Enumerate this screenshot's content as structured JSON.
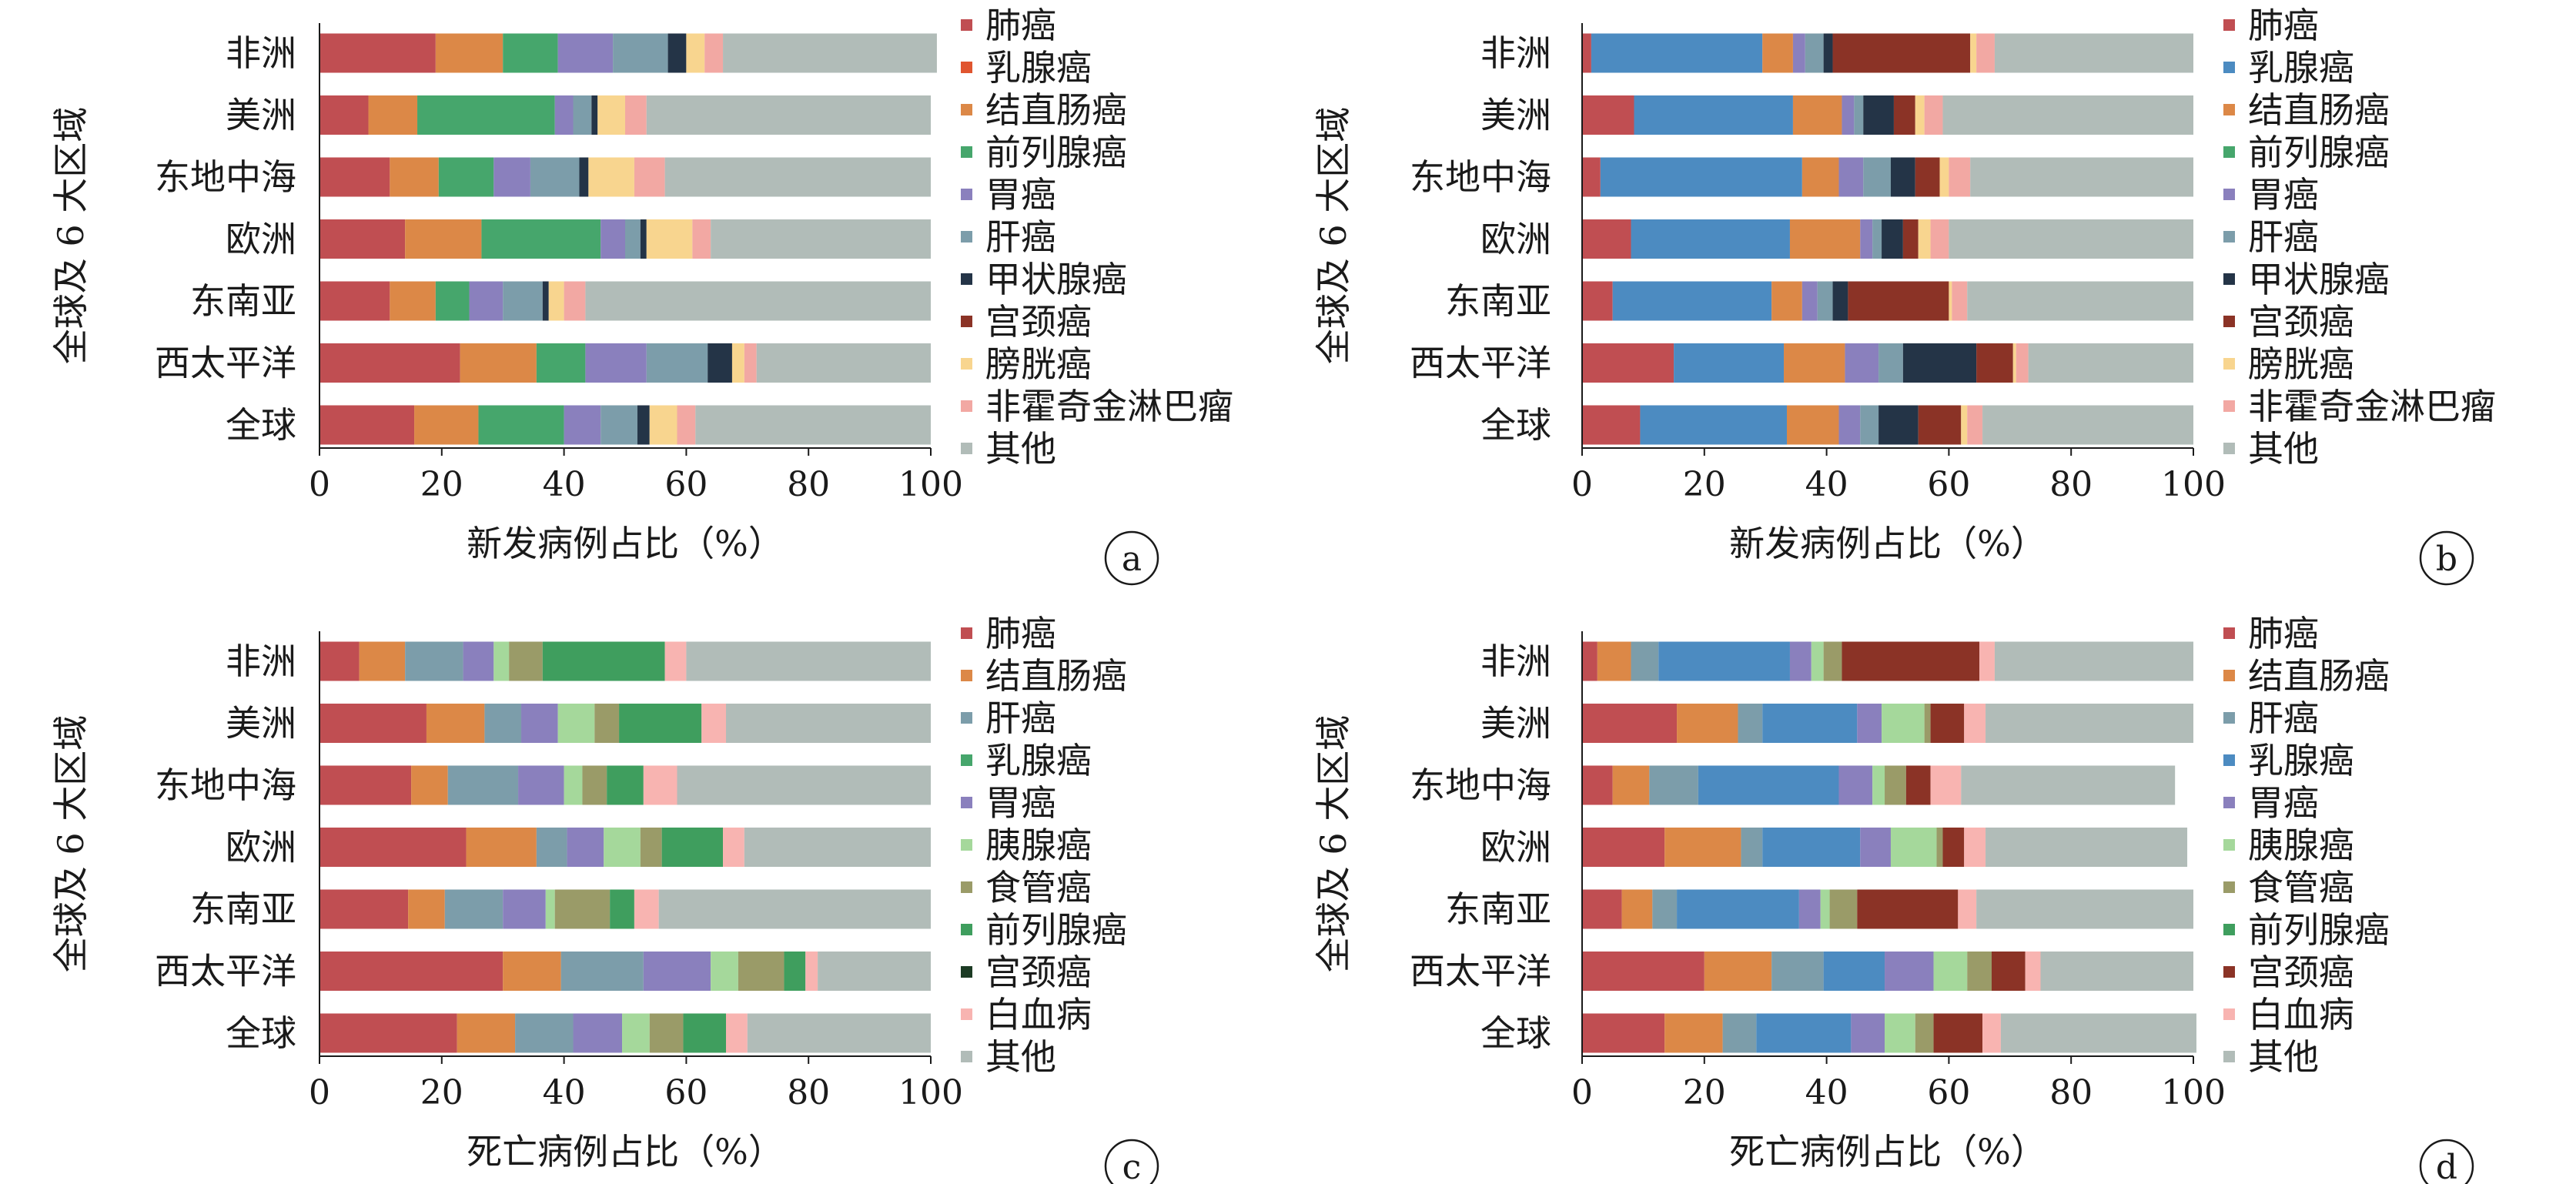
{
  "colors": {
    "lung": "#c04e52",
    "breast_b": "#e0552f",
    "colorectal": "#dc8847",
    "prostate": "#46a66c",
    "stomach": "#8a80bd",
    "liver": "#7c9daa",
    "thyroid": "#243447",
    "cervix": "#8b3326",
    "bladder": "#f8d58f",
    "nhl": "#f2a8a3",
    "other": "#b1bcb8",
    "breast_blue": "#4c8bc1",
    "pancreas": "#a5d89b",
    "esophagus": "#9a9b68",
    "leukemia": "#f8b4b1"
  },
  "chart_data": [
    {
      "type": "bar",
      "orientation": "horizontal",
      "stacked": true,
      "panel": "a",
      "categories": [
        "非洲",
        "美洲",
        "东地中海",
        "欧洲",
        "东南亚",
        "西太平洋",
        "全球"
      ],
      "ylabel": "全球及 6 大区域",
      "xlabel": "新发病例占比（%）",
      "xlim": [
        0,
        100
      ],
      "xticks": [
        "0",
        "20",
        "40",
        "60",
        "80",
        "100"
      ],
      "legend_position": "right",
      "series": [
        {
          "name": "肺癌",
          "color": "#c04e52",
          "values": [
            19,
            8,
            11.5,
            14,
            11.5,
            23,
            15.5
          ]
        },
        {
          "name": "乳腺癌",
          "color": "#e0552f",
          "values": [
            0,
            0,
            0,
            0,
            0,
            0,
            0
          ]
        },
        {
          "name": "结直肠癌",
          "color": "#dc8847",
          "values": [
            11,
            8,
            8,
            12.5,
            7.5,
            12.5,
            10.5
          ]
        },
        {
          "name": "前列腺癌",
          "color": "#46a66c",
          "values": [
            9,
            22.5,
            9,
            19.5,
            5.5,
            8,
            14
          ]
        },
        {
          "name": "胃癌",
          "color": "#8a80bd",
          "values": [
            9,
            3,
            6,
            4,
            5.5,
            10,
            6
          ]
        },
        {
          "name": "肝癌",
          "color": "#7c9daa",
          "values": [
            9,
            3,
            8,
            2.5,
            6.5,
            10,
            6
          ]
        },
        {
          "name": "甲状腺癌",
          "color": "#243447",
          "values": [
            3,
            1,
            1.5,
            1,
            1,
            4,
            2
          ]
        },
        {
          "name": "宫颈癌",
          "color": "#8b3326",
          "values": [
            0,
            0,
            0,
            0,
            0,
            0,
            0
          ]
        },
        {
          "name": "膀胱癌",
          "color": "#f8d58f",
          "values": [
            3,
            4.5,
            7.5,
            7.5,
            2.5,
            2,
            4.5
          ]
        },
        {
          "name": "非霍奇金淋巴瘤",
          "color": "#f2a8a3",
          "values": [
            3,
            3.5,
            5,
            3,
            3.5,
            2,
            3
          ]
        },
        {
          "name": "其他",
          "color": "#b1bcb8",
          "values": [
            35,
            46.5,
            43.5,
            36,
            56.5,
            28.5,
            38.5
          ]
        }
      ]
    },
    {
      "type": "bar",
      "orientation": "horizontal",
      "stacked": true,
      "panel": "b",
      "categories": [
        "非洲",
        "美洲",
        "东地中海",
        "欧洲",
        "东南亚",
        "西太平洋",
        "全球"
      ],
      "ylabel": "全球及 6 大区域",
      "xlabel": "新发病例占比（%）",
      "xlim": [
        0,
        100
      ],
      "xticks": [
        "0",
        "20",
        "40",
        "60",
        "80",
        "100"
      ],
      "legend_position": "right",
      "series": [
        {
          "name": "肺癌",
          "color": "#c04e52",
          "values": [
            1.5,
            8.5,
            3,
            8,
            5,
            15,
            9.5
          ]
        },
        {
          "name": "乳腺癌",
          "color": "#4c8bc1",
          "values": [
            28,
            26,
            33,
            26,
            26,
            18,
            24
          ]
        },
        {
          "name": "结直肠癌",
          "color": "#dc8847",
          "values": [
            5,
            8,
            6,
            11.5,
            5,
            10,
            8.5
          ]
        },
        {
          "name": "前列腺癌",
          "color": "#46a66c",
          "values": [
            0,
            0,
            0,
            0,
            0,
            0,
            0
          ]
        },
        {
          "name": "胃癌",
          "color": "#8a80bd",
          "values": [
            2,
            2,
            4,
            2,
            2.5,
            5.5,
            3.5
          ]
        },
        {
          "name": "肝癌",
          "color": "#7c9daa",
          "values": [
            3,
            1.5,
            4.5,
            1.5,
            2.5,
            4,
            3
          ]
        },
        {
          "name": "甲状腺癌",
          "color": "#243447",
          "values": [
            1.5,
            5,
            4,
            3.5,
            2.5,
            12,
            6.5
          ]
        },
        {
          "name": "宫颈癌",
          "color": "#8b3326",
          "values": [
            22.5,
            3.5,
            4,
            2.5,
            16.5,
            6,
            7
          ]
        },
        {
          "name": "膀胱癌",
          "color": "#f8d58f",
          "values": [
            1,
            1.5,
            1.5,
            2,
            0.5,
            0.5,
            1
          ]
        },
        {
          "name": "非霍奇金淋巴瘤",
          "color": "#f2a8a3",
          "values": [
            3,
            3,
            3.5,
            3,
            2.5,
            2,
            2.5
          ]
        },
        {
          "name": "其他",
          "color": "#b1bcb8",
          "values": [
            32.5,
            41,
            36.5,
            40,
            37,
            27,
            34.5
          ]
        }
      ]
    },
    {
      "type": "bar",
      "orientation": "horizontal",
      "stacked": true,
      "panel": "c",
      "categories": [
        "非洲",
        "美洲",
        "东地中海",
        "欧洲",
        "东南亚",
        "西太平洋",
        "全球"
      ],
      "ylabel": "全球及 6 大区域",
      "xlabel": "死亡病例占比（%）",
      "xlim": [
        0,
        100
      ],
      "xticks": [
        "0",
        "20",
        "40",
        "60",
        "80",
        "100"
      ],
      "legend_position": "right",
      "series": [
        {
          "name": "肺癌",
          "color": "#c04e52",
          "values": [
            6.5,
            17.5,
            15,
            24,
            14.5,
            30,
            22.5
          ]
        },
        {
          "name": "结直肠癌",
          "color": "#dc8847",
          "values": [
            7.5,
            9.5,
            6,
            11.5,
            6,
            9.5,
            9.5
          ]
        },
        {
          "name": "肝癌",
          "color": "#7c9daa",
          "values": [
            9.5,
            6,
            11.5,
            5,
            9.5,
            13.5,
            9.5
          ]
        },
        {
          "name": "乳腺癌",
          "color": "#46a66c",
          "values": [
            0,
            0,
            0,
            0,
            0,
            0,
            0
          ]
        },
        {
          "name": "胃癌",
          "color": "#8a80bd",
          "values": [
            5,
            6,
            7.5,
            6,
            7,
            11,
            8
          ]
        },
        {
          "name": "胰腺癌",
          "color": "#a5d89b",
          "values": [
            2.5,
            6,
            3,
            6,
            1.5,
            4.5,
            4.5
          ]
        },
        {
          "name": "食管癌",
          "color": "#9a9b68",
          "values": [
            5.5,
            4,
            4,
            3.5,
            9,
            7.5,
            5.5
          ]
        },
        {
          "name": "前列腺癌",
          "color": "#3f9e5e",
          "values": [
            20,
            13.5,
            6,
            10,
            4,
            3.5,
            7
          ]
        },
        {
          "name": "宫颈癌",
          "color": "#1c3b24",
          "values": [
            0,
            0,
            0,
            0,
            0,
            0,
            0
          ]
        },
        {
          "name": "白血病",
          "color": "#f8b4b1",
          "values": [
            3.5,
            4,
            5.5,
            3.5,
            4,
            2,
            3.5
          ]
        },
        {
          "name": "其他",
          "color": "#b1bcb8",
          "values": [
            40,
            33.5,
            41.5,
            30.5,
            44.5,
            18.5,
            30
          ]
        }
      ]
    },
    {
      "type": "bar",
      "orientation": "horizontal",
      "stacked": true,
      "panel": "d",
      "categories": [
        "非洲",
        "美洲",
        "东地中海",
        "欧洲",
        "东南亚",
        "西太平洋",
        "全球"
      ],
      "ylabel": "全球及 6 大区域",
      "xlabel": "死亡病例占比（%）",
      "xlim": [
        0,
        100
      ],
      "xticks": [
        "0",
        "20",
        "40",
        "60",
        "80",
        "100"
      ],
      "legend_position": "right",
      "series": [
        {
          "name": "肺癌",
          "color": "#c04e52",
          "values": [
            2.5,
            15.5,
            5,
            13.5,
            6.5,
            20,
            13.5
          ]
        },
        {
          "name": "结直肠癌",
          "color": "#dc8847",
          "values": [
            5.5,
            10,
            6,
            12.5,
            5,
            11,
            9.5
          ]
        },
        {
          "name": "肝癌",
          "color": "#7c9daa",
          "values": [
            4.5,
            4,
            8,
            3.5,
            4,
            8.5,
            5.5
          ]
        },
        {
          "name": "乳腺癌",
          "color": "#4c8bc1",
          "values": [
            21.5,
            15.5,
            23,
            16,
            20,
            10,
            15.5
          ]
        },
        {
          "name": "胃癌",
          "color": "#8a80bd",
          "values": [
            3.5,
            4,
            5.5,
            5,
            3.5,
            8,
            5.5
          ]
        },
        {
          "name": "胰腺癌",
          "color": "#a5d89b",
          "values": [
            2,
            7,
            2,
            7.5,
            1.5,
            5.5,
            5
          ]
        },
        {
          "name": "食管癌",
          "color": "#9a9b68",
          "values": [
            3,
            1,
            3.5,
            1,
            4.5,
            4,
            3
          ]
        },
        {
          "name": "前列腺癌",
          "color": "#3f9e5e",
          "values": [
            0,
            0,
            0,
            0,
            0,
            0,
            0
          ]
        },
        {
          "name": "宫颈癌",
          "color": "#8b3326",
          "values": [
            22.5,
            5.5,
            4,
            3.5,
            16.5,
            5.5,
            8
          ]
        },
        {
          "name": "白血病",
          "color": "#f8b4b1",
          "values": [
            2.5,
            3.5,
            5,
            3.5,
            3,
            2.5,
            3
          ]
        },
        {
          "name": "其他",
          "color": "#b1bcb8",
          "values": [
            32.5,
            34,
            35,
            33,
            35.5,
            25,
            32
          ]
        }
      ]
    }
  ]
}
